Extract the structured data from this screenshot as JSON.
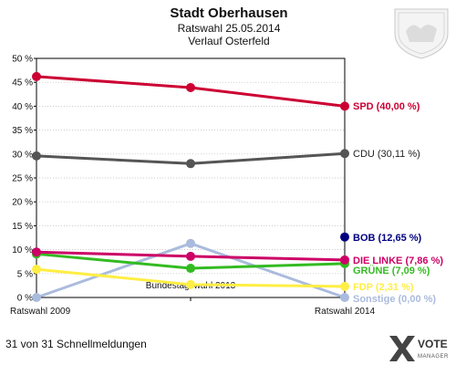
{
  "header": {
    "title": "Stadt Oberhausen",
    "subtitle": "Ratswahl 25.05.2014",
    "subtitle2": "Verlauf Osterfeld"
  },
  "footer": {
    "status": "31 von 31 Schnellmeldungen",
    "logo_main": "VOTE",
    "logo_sub": "MANAGER"
  },
  "icons": {
    "coat_of_arms": "coat-of-arms-icon",
    "logo": "votemanager-logo-icon"
  },
  "chart_data": {
    "type": "line",
    "categories": [
      "Ratswahl 2009",
      "Bundestagswahl 2013",
      "Ratswahl 2014"
    ],
    "ylim": [
      0,
      50
    ],
    "yticks": [
      "0 %",
      "5 %",
      "10 %",
      "15 %",
      "20 %",
      "25 %",
      "30 %",
      "35 %",
      "40 %",
      "45 %",
      "50 %"
    ],
    "grid": true,
    "series": [
      {
        "name": "SPD",
        "values": [
          46.2,
          43.9,
          40.0
        ],
        "color": "#cc0033",
        "label": "SPD (40,00 %)"
      },
      {
        "name": "CDU",
        "values": [
          29.6,
          28.0,
          30.11
        ],
        "color": "#555555",
        "label": "CDU (30,11 %)"
      },
      {
        "name": "BOB",
        "values": [
          null,
          null,
          12.65
        ],
        "color": "#000080",
        "label": "BOB (12,65 %)"
      },
      {
        "name": "DIE LINKE",
        "values": [
          9.5,
          8.6,
          7.86
        ],
        "color": "#cc0066",
        "label": "DIE LINKE (7,86 %)"
      },
      {
        "name": "GRÜNE",
        "values": [
          9.1,
          6.1,
          7.09
        ],
        "color": "#33bb22",
        "label": "GRÜNE (7,09 %)"
      },
      {
        "name": "FDP",
        "values": [
          5.9,
          2.7,
          2.31
        ],
        "color": "#ffee44",
        "label": "FDP (2,31 %)"
      },
      {
        "name": "Sonstige",
        "values": [
          0.0,
          11.3,
          0.0
        ],
        "color": "#aabbdd",
        "label": "Sonstige (0,00 %)"
      }
    ]
  }
}
